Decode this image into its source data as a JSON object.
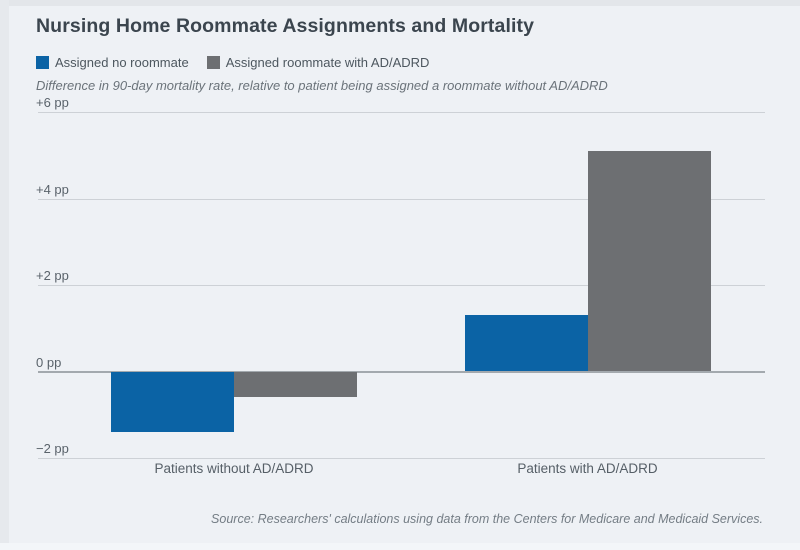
{
  "page": {
    "title": "Nursing Home Roommate Assignments and Mortality",
    "subtitle": "Difference in 90-day mortality rate, relative to patient being assigned a roommate without AD/ADRD",
    "source": "Source: Researchers' calculations using data from the Centers for Medicare and Medicaid Services."
  },
  "legend": [
    {
      "label": "Assigned no roommate",
      "color": "#0b63a5"
    },
    {
      "label": "Assigned roommate with AD/ADRD",
      "color": "#6d6f72"
    }
  ],
  "colors": {
    "background": "#eef1f5",
    "gridline": "#cdd1d6",
    "zero_line": "#a3a9ae",
    "blue_series": "#0b63a5",
    "gray_series": "#6d6f72"
  },
  "chart_data": {
    "type": "bar",
    "title": "Nursing Home Roommate Assignments and Mortality",
    "ylabel": "Difference in 90-day mortality rate, relative to patient being assigned a roommate without AD/ADRD",
    "unit": "pp",
    "categories": [
      "Patients without AD/ADRD",
      "Patients with AD/ADRD"
    ],
    "series": [
      {
        "name": "Assigned no roommate",
        "color": "#0b63a5",
        "values": [
          -1.4,
          1.3
        ]
      },
      {
        "name": "Assigned roommate with AD/ADRD",
        "color": "#6d6f72",
        "values": [
          -0.6,
          5.1
        ]
      }
    ],
    "yticks": [
      {
        "value": 6,
        "label": "+6 pp"
      },
      {
        "value": 4,
        "label": "+4 pp"
      },
      {
        "value": 2,
        "label": "+2 pp"
      },
      {
        "value": 0,
        "label": "0 pp"
      },
      {
        "value": -2,
        "label": "−2 pp"
      }
    ],
    "ylim": [
      -2.6,
      6.5
    ],
    "grid": true,
    "legend_position": "top-left"
  }
}
